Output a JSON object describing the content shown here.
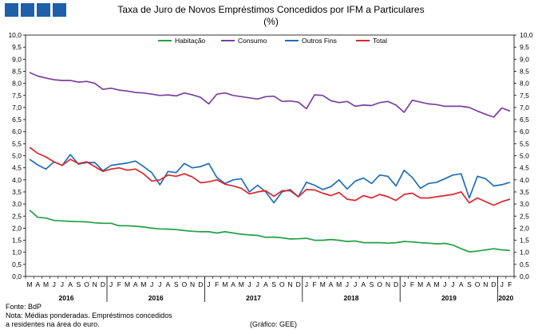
{
  "title": "Taxa de Juro de Novos Empréstimos Concedidos por IFM a Particulares",
  "subtitle": "(%)",
  "footer": {
    "source": "Fonte: BdP",
    "note_line1": "Nota: Médias ponderadas.  Empréstimos concedidos",
    "note_line2": "a residentes na área do euro.",
    "credit": "(Gráfico: GEE)"
  },
  "chart_data": {
    "type": "line",
    "ylim": [
      0,
      10
    ],
    "yticks": [
      "0,0",
      "0,5",
      "1,0",
      "1,5",
      "2,0",
      "2,5",
      "3,0",
      "3,5",
      "4,0",
      "4,5",
      "5,0",
      "5,5",
      "6,0",
      "6,5",
      "7,0",
      "7,5",
      "8,0",
      "8,5",
      "9,0",
      "9,5",
      "10,0"
    ],
    "legend_position": "top",
    "grid": false,
    "x": [
      "M",
      "A",
      "M",
      "J",
      "J",
      "A",
      "S",
      "O",
      "N",
      "D",
      "J",
      "F",
      "M",
      "A",
      "M",
      "J",
      "J",
      "A",
      "S",
      "O",
      "N",
      "D",
      "J",
      "F",
      "M",
      "A",
      "M",
      "J",
      "J",
      "A",
      "S",
      "O",
      "N",
      "D",
      "J",
      "F",
      "M",
      "A",
      "M",
      "J",
      "J",
      "A",
      "S",
      "O",
      "N",
      "D",
      "J",
      "F",
      "M",
      "A",
      "M",
      "J",
      "J",
      "A",
      "S",
      "O",
      "N",
      "D",
      "J",
      "F"
    ],
    "years": [
      {
        "label": "2016",
        "start": 0,
        "end": 9
      },
      {
        "label": "2016",
        "start": 10,
        "end": 21
      },
      {
        "label": "2017",
        "start": 22,
        "end": 33
      },
      {
        "label": "2018",
        "start": 34,
        "end": 45
      },
      {
        "label": "2019",
        "start": 46,
        "end": 57
      },
      {
        "label": "2020",
        "start": 58,
        "end": 59
      }
    ],
    "series": [
      {
        "name": "Habitação",
        "color": "#22a046",
        "values": [
          2.75,
          2.45,
          2.42,
          2.32,
          2.3,
          2.28,
          2.27,
          2.26,
          2.22,
          2.2,
          2.2,
          2.1,
          2.1,
          2.08,
          2.05,
          2.0,
          1.97,
          1.96,
          1.94,
          1.9,
          1.87,
          1.85,
          1.85,
          1.8,
          1.85,
          1.8,
          1.75,
          1.72,
          1.7,
          1.62,
          1.63,
          1.6,
          1.55,
          1.56,
          1.58,
          1.5,
          1.5,
          1.53,
          1.5,
          1.45,
          1.47,
          1.4,
          1.4,
          1.4,
          1.38,
          1.4,
          1.45,
          1.43,
          1.4,
          1.38,
          1.35,
          1.37,
          1.3,
          1.15,
          1.02,
          1.05,
          1.1,
          1.15,
          1.1,
          1.08
        ]
      },
      {
        "name": "Consumo",
        "color": "#7b3fa0",
        "values": [
          8.45,
          8.3,
          8.22,
          8.15,
          8.12,
          8.12,
          8.05,
          8.08,
          8.0,
          7.75,
          7.8,
          7.72,
          7.68,
          7.62,
          7.6,
          7.55,
          7.5,
          7.52,
          7.48,
          7.6,
          7.52,
          7.42,
          7.15,
          7.55,
          7.6,
          7.5,
          7.45,
          7.4,
          7.35,
          7.45,
          7.47,
          7.25,
          7.27,
          7.22,
          6.95,
          7.52,
          7.5,
          7.28,
          7.2,
          7.25,
          7.05,
          7.1,
          7.08,
          7.2,
          7.25,
          7.1,
          6.8,
          7.3,
          7.22,
          7.15,
          7.12,
          7.05,
          7.05,
          7.05,
          7.0,
          6.85,
          6.72,
          6.6,
          6.98,
          6.85
        ]
      },
      {
        "name": "Outros Fins",
        "color": "#1f6fb5",
        "values": [
          4.85,
          4.62,
          4.45,
          4.75,
          4.6,
          5.05,
          4.65,
          4.72,
          4.72,
          4.38,
          4.6,
          4.65,
          4.7,
          4.78,
          4.55,
          4.3,
          3.8,
          4.35,
          4.3,
          4.68,
          4.5,
          4.55,
          4.68,
          4.1,
          3.85,
          4.0,
          4.05,
          3.5,
          3.78,
          3.5,
          3.05,
          3.5,
          3.6,
          3.3,
          3.9,
          3.78,
          3.6,
          3.72,
          4.0,
          3.62,
          3.95,
          4.08,
          3.85,
          4.2,
          4.15,
          3.75,
          4.4,
          4.1,
          3.65,
          3.85,
          3.9,
          4.05,
          4.2,
          4.25,
          3.25,
          4.15,
          4.05,
          3.75,
          3.8,
          3.9
        ]
      },
      {
        "name": "Total",
        "color": "#e0242b",
        "values": [
          5.35,
          5.1,
          4.95,
          4.75,
          4.6,
          4.85,
          4.68,
          4.75,
          4.55,
          4.35,
          4.45,
          4.5,
          4.4,
          4.45,
          4.25,
          3.95,
          4.0,
          4.2,
          4.15,
          4.25,
          4.12,
          3.88,
          3.92,
          4.0,
          3.82,
          3.75,
          3.65,
          3.42,
          3.5,
          3.55,
          3.32,
          3.55,
          3.55,
          3.3,
          3.6,
          3.58,
          3.45,
          3.35,
          3.48,
          3.2,
          3.15,
          3.35,
          3.25,
          3.4,
          3.3,
          3.15,
          3.4,
          3.45,
          3.25,
          3.25,
          3.3,
          3.35,
          3.4,
          3.5,
          3.05,
          3.25,
          3.1,
          2.95,
          3.1,
          3.2
        ]
      }
    ]
  }
}
